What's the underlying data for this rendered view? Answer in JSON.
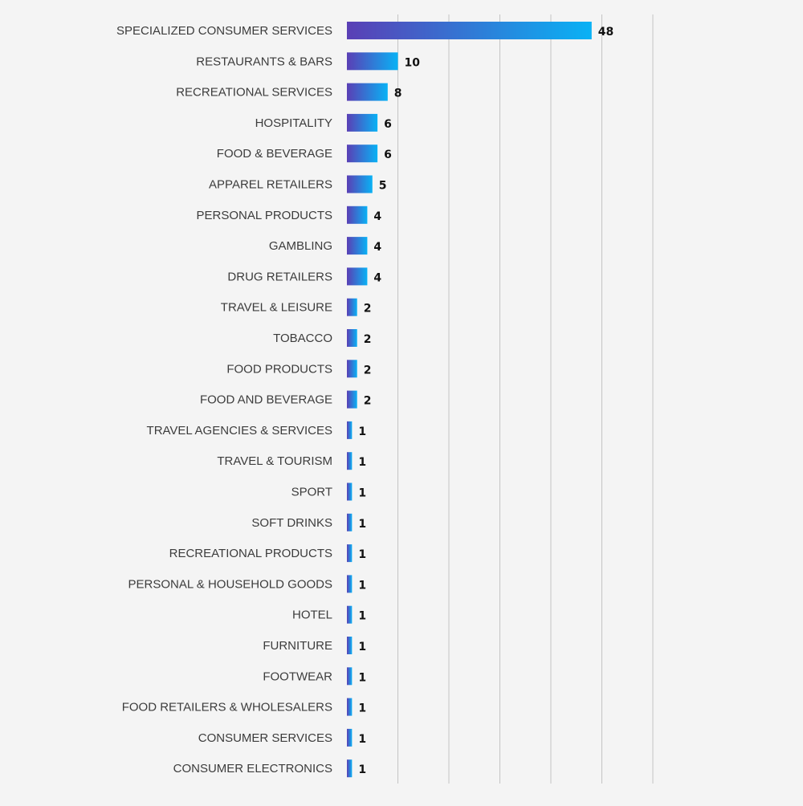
{
  "chart_data": {
    "type": "bar",
    "orientation": "horizontal",
    "title": "",
    "xlabel": "",
    "ylabel": "",
    "xlim": [
      0,
      60
    ],
    "grid": true,
    "legend": "none",
    "colors": {
      "bar_start": "#5a3fb5",
      "bar_end": "#09b2f5",
      "background": "#f4f4f4",
      "grid": "#c4c4c4"
    },
    "categories": [
      "SPECIALIZED CONSUMER SERVICES",
      "RESTAURANTS & BARS",
      "RECREATIONAL SERVICES",
      "HOSPITALITY",
      "FOOD & BEVERAGE",
      "APPAREL RETAILERS",
      "PERSONAL PRODUCTS",
      "GAMBLING",
      "DRUG RETAILERS",
      "TRAVEL & LEISURE",
      "TOBACCO",
      "FOOD PRODUCTS",
      "FOOD AND BEVERAGE",
      "TRAVEL AGENCIES & SERVICES",
      "TRAVEL & TOURISM",
      "SPORT",
      "SOFT DRINKS",
      "RECREATIONAL PRODUCTS",
      "PERSONAL & HOUSEHOLD GOODS",
      "HOTEL",
      "FURNITURE",
      "FOOTWEAR",
      "FOOD RETAILERS & WHOLESALERS",
      "CONSUMER SERVICES",
      "CONSUMER ELECTRONICS"
    ],
    "values": [
      48,
      10,
      8,
      6,
      6,
      5,
      4,
      4,
      4,
      2,
      2,
      2,
      2,
      1,
      1,
      1,
      1,
      1,
      1,
      1,
      1,
      1,
      1,
      1,
      1
    ]
  }
}
